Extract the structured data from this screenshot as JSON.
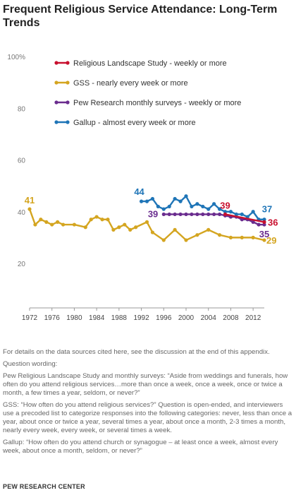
{
  "title": "Frequent  Religious Service Attendance:  Long-Term Trends",
  "chart_data": {
    "type": "line",
    "xlabel": "",
    "ylabel": "",
    "xlim": [
      1972,
      2014
    ],
    "ylim": [
      20,
      100
    ],
    "y_ticks": [
      "20",
      "40",
      "60",
      "80",
      "100%"
    ],
    "x_ticks": [
      "1972",
      "1976",
      "1980",
      "1984",
      "1988",
      "1992",
      "1996",
      "2000",
      "2004",
      "2008",
      "2012"
    ],
    "grid": false,
    "legend_position": "top-right",
    "series": [
      {
        "name": "Religious Landscape Study - weekly or more",
        "color": "#c8102e",
        "points": [
          [
            2007,
            39
          ],
          [
            2014,
            36
          ]
        ],
        "labels": [
          {
            "text": "39",
            "x": 2007,
            "y": 39
          },
          {
            "text": "36",
            "x": 2014,
            "y": 36
          }
        ]
      },
      {
        "name": "GSS - nearly every week or more",
        "color": "#d4a520",
        "points": [
          [
            1972,
            41
          ],
          [
            1973,
            35
          ],
          [
            1974,
            37
          ],
          [
            1975,
            36
          ],
          [
            1976,
            35
          ],
          [
            1977,
            36
          ],
          [
            1978,
            35
          ],
          [
            1980,
            35
          ],
          [
            1982,
            34
          ],
          [
            1983,
            37
          ],
          [
            1984,
            38
          ],
          [
            1985,
            37
          ],
          [
            1986,
            37
          ],
          [
            1987,
            33
          ],
          [
            1988,
            34
          ],
          [
            1989,
            35
          ],
          [
            1990,
            33
          ],
          [
            1991,
            34
          ],
          [
            1993,
            36
          ],
          [
            1994,
            32
          ],
          [
            1996,
            29
          ],
          [
            1998,
            33
          ],
          [
            2000,
            29
          ],
          [
            2002,
            31
          ],
          [
            2004,
            33
          ],
          [
            2006,
            31
          ],
          [
            2008,
            30
          ],
          [
            2010,
            30
          ],
          [
            2012,
            30
          ],
          [
            2014,
            29
          ]
        ],
        "labels": [
          {
            "text": "41",
            "x": 1972,
            "y": 41
          },
          {
            "text": "29",
            "x": 2014,
            "y": 29
          }
        ]
      },
      {
        "name": "Pew Research monthly surveys - weekly or more",
        "color": "#6a2c8e",
        "points": [
          [
            1996,
            39
          ],
          [
            1997,
            39
          ],
          [
            1998,
            39
          ],
          [
            1999,
            39
          ],
          [
            2000,
            39
          ],
          [
            2001,
            39
          ],
          [
            2002,
            39
          ],
          [
            2003,
            39
          ],
          [
            2004,
            39
          ],
          [
            2005,
            39
          ],
          [
            2006,
            39
          ],
          [
            2007,
            38.5
          ],
          [
            2008,
            38
          ],
          [
            2009,
            38
          ],
          [
            2010,
            37
          ],
          [
            2011,
            37
          ],
          [
            2012,
            36
          ],
          [
            2013,
            35
          ],
          [
            2014,
            35
          ]
        ],
        "labels": [
          {
            "text": "39",
            "x": 1996,
            "y": 39
          },
          {
            "text": "35",
            "x": 2014,
            "y": 35
          }
        ]
      },
      {
        "name": "Gallup - almost every week or more",
        "color": "#1f75b7",
        "points": [
          [
            1992,
            44
          ],
          [
            1993,
            44
          ],
          [
            1994,
            45
          ],
          [
            1995,
            42
          ],
          [
            1996,
            41
          ],
          [
            1997,
            42
          ],
          [
            1998,
            45
          ],
          [
            1999,
            44
          ],
          [
            2000,
            46
          ],
          [
            2001,
            42
          ],
          [
            2002,
            43
          ],
          [
            2003,
            42
          ],
          [
            2004,
            41
          ],
          [
            2005,
            43
          ],
          [
            2006,
            41
          ],
          [
            2007,
            40
          ],
          [
            2008,
            40
          ],
          [
            2009,
            39
          ],
          [
            2010,
            39
          ],
          [
            2011,
            38
          ],
          [
            2012,
            40
          ],
          [
            2013,
            37
          ],
          [
            2014,
            37
          ]
        ],
        "labels": [
          {
            "text": "44",
            "x": 1992,
            "y": 44
          },
          {
            "text": "37",
            "x": 2014,
            "y": 37
          }
        ]
      }
    ]
  },
  "notes": {
    "details": "For details on the data sources cited here, see the discussion at the end of this appendix.",
    "question_heading": "Question wording:",
    "pew": "Pew Religious Landscape Study and monthly surveys: “Aside from weddings and funerals, how often do you attend religious services…more than once a week, once a week, once or twice a month, a few times a year, seldom, or never?”",
    "gss": "GSS: “How often do you attend religious services?” Question is open-ended, and interviewers use a precoded list to categorize responses into the following categories: never, less than once a year, about once or twice a year, several times a year, about once a month, 2-3 times a month, nearly every week, every week, or several times a week.",
    "gallup": "Gallup: “How often do you attend church or synagogue – at least once a week, almost every week, about once a month, seldom, or never?”"
  },
  "footer": "PEW RESEARCH CENTER"
}
